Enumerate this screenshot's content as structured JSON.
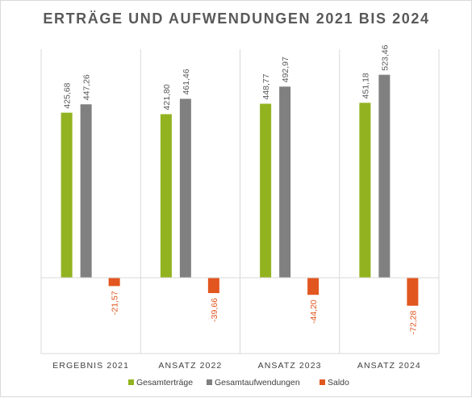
{
  "chart_data": {
    "type": "bar",
    "title": "ERTRÄGE UND AUFWENDUNGEN 2021 BIS 2024",
    "categories": [
      "ERGEBNIS 2021",
      "ANSATZ 2022",
      "ANSATZ 2023",
      "ANSATZ 2024"
    ],
    "series": [
      {
        "name": "Gesamterträge",
        "color": "#92b31f",
        "values": [
          425.68,
          421.8,
          448.77,
          451.18
        ],
        "labels": [
          "425,68",
          "421,80",
          "448,77",
          "451,18"
        ]
      },
      {
        "name": "Gesamtaufwendungen",
        "color": "#808080",
        "values": [
          447.26,
          461.46,
          492.97,
          523.46
        ],
        "labels": [
          "447,26",
          "461,46",
          "492,97",
          "523,46"
        ]
      },
      {
        "name": "Saldo",
        "color": "#e2561f",
        "values": [
          -21.57,
          -39.66,
          -44.2,
          -72.28
        ],
        "labels": [
          "-21,57",
          "-39,66",
          "-44,20",
          "-72,28"
        ]
      }
    ],
    "ylim": [
      -200,
      600
    ],
    "grid": false,
    "legend_position": "bottom",
    "data_labels": true,
    "title_color": "#595959",
    "label_color_positive": "#595959",
    "label_color_negative": "#e2561f"
  }
}
